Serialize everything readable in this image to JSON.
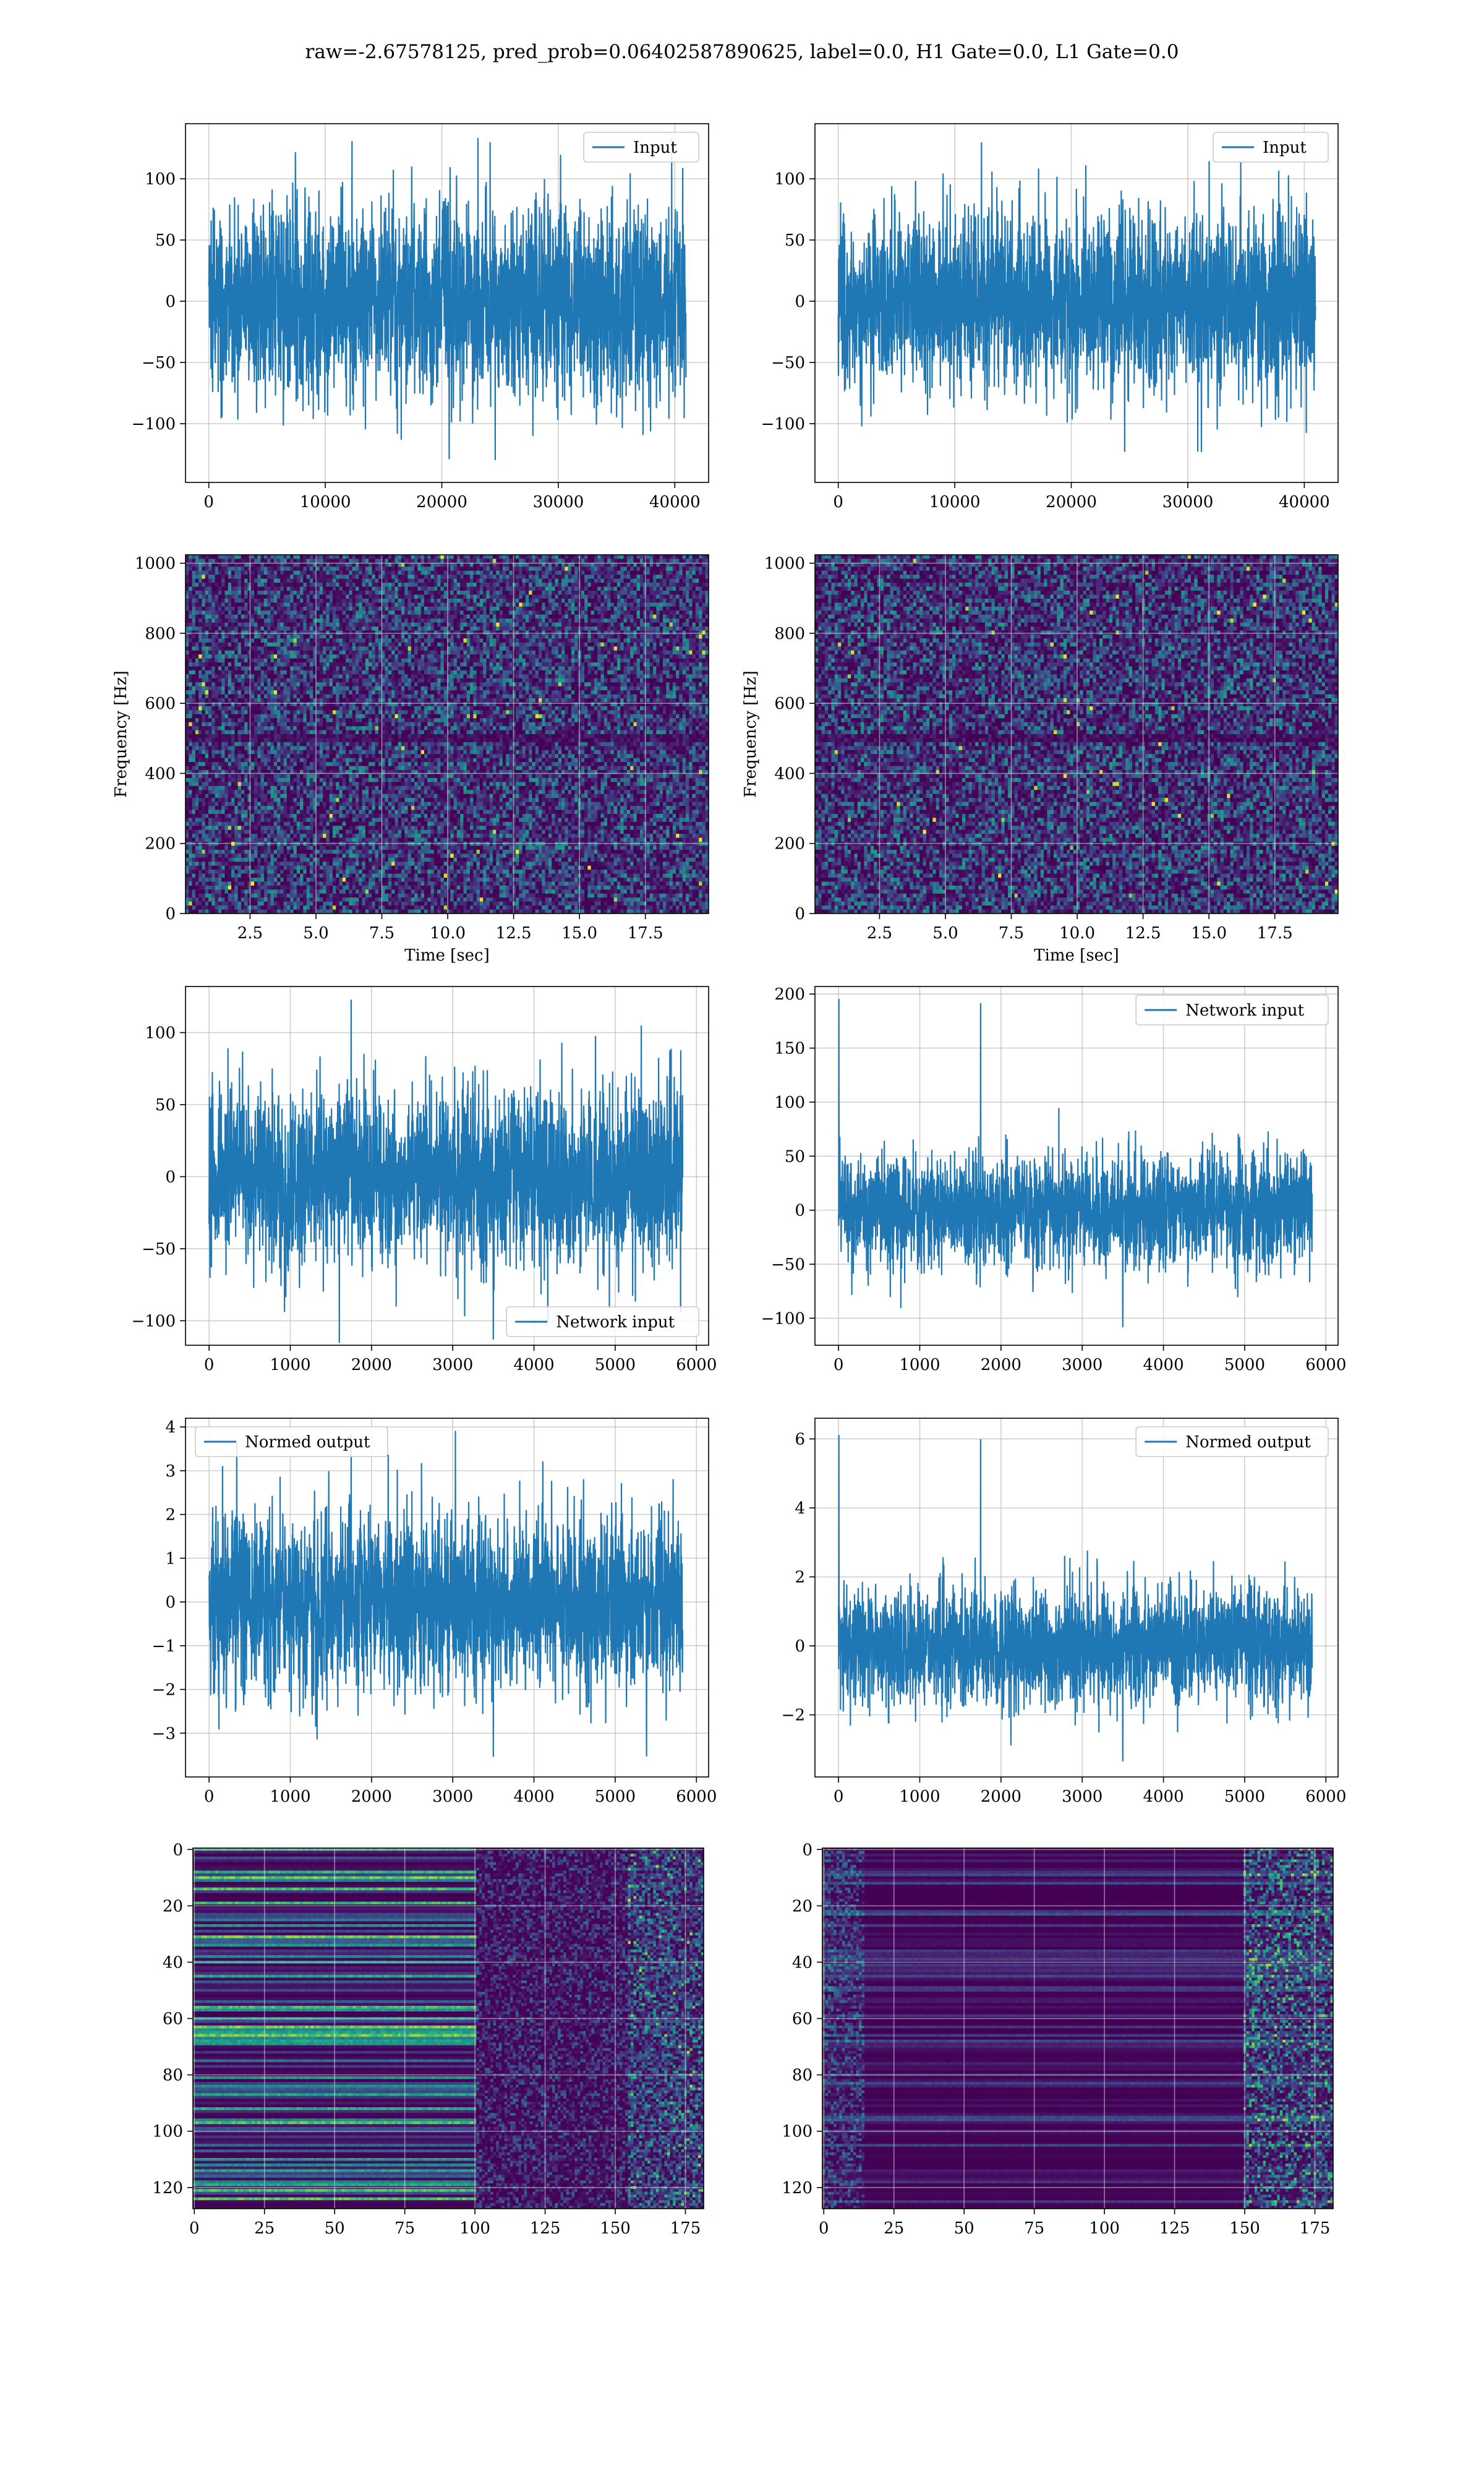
{
  "page": {
    "title": "raw=-2.67578125, pred_prob=0.06402587890625, label=0.0, H1 Gate=0.0, L1 Gate=0.0"
  },
  "colors": {
    "line": "#1f77b4",
    "grid": "#b0b0b0",
    "viridis": [
      "#440154",
      "#482878",
      "#3e4989",
      "#31688e",
      "#26828e",
      "#1f9e89",
      "#35b779",
      "#6ece58",
      "#b5de2b",
      "#fde725"
    ]
  },
  "chart_data": [
    {
      "id": "p1",
      "type": "line",
      "xlim": [
        -2000,
        42900
      ],
      "ylim": [
        -148,
        145
      ],
      "xticks": [
        0,
        10000,
        20000,
        30000,
        40000
      ],
      "yticks": [
        -100,
        -50,
        0,
        50,
        100
      ],
      "xticklabels": [
        "0",
        "10000",
        "20000",
        "30000",
        "40000"
      ],
      "yticklabels": [
        "−100",
        "−50",
        "0",
        "50",
        "100"
      ],
      "xlabel": "",
      "ylabel": "",
      "grid": true,
      "legend": "top-right",
      "series": [
        {
          "name": "Input",
          "x_range": [
            0,
            40959
          ],
          "typical_amplitude": 38,
          "extreme": [
            -132,
            133
          ]
        }
      ]
    },
    {
      "id": "p2",
      "type": "line",
      "xlim": [
        -2000,
        42900
      ],
      "ylim": [
        -148,
        145
      ],
      "xticks": [
        0,
        10000,
        20000,
        30000,
        40000
      ],
      "yticks": [
        -100,
        -50,
        0,
        50,
        100
      ],
      "xticklabels": [
        "0",
        "10000",
        "20000",
        "30000",
        "40000"
      ],
      "yticklabels": [
        "−100",
        "−50",
        "0",
        "50",
        "100"
      ],
      "xlabel": "",
      "ylabel": "",
      "grid": true,
      "legend": "top-right",
      "series": [
        {
          "name": "Input",
          "x_range": [
            0,
            40959
          ],
          "typical_amplitude": 36,
          "extreme": [
            -125,
            132
          ]
        }
      ]
    },
    {
      "id": "p3",
      "type": "heatmap",
      "xlim": [
        0.05,
        19.9
      ],
      "ylim": [
        0,
        1024
      ],
      "xticks": [
        2.5,
        5,
        7.5,
        10,
        12.5,
        15,
        17.5
      ],
      "yticks": [
        0,
        200,
        400,
        600,
        800,
        1000
      ],
      "xticklabels": [
        "2.5",
        "5.0",
        "7.5",
        "10.0",
        "12.5",
        "15.0",
        "17.5"
      ],
      "yticklabels": [
        "0",
        "200",
        "400",
        "600",
        "800",
        "1000"
      ],
      "xlabel": "Time [sec]",
      "ylabel": "Frequency [Hz]",
      "grid": true,
      "notes": "spectrogram, noise-like, dark bands near 500 Hz"
    },
    {
      "id": "p4",
      "type": "heatmap",
      "xlim": [
        0.05,
        19.9
      ],
      "ylim": [
        0,
        1024
      ],
      "xticks": [
        2.5,
        5,
        7.5,
        10,
        12.5,
        15,
        17.5
      ],
      "yticks": [
        0,
        200,
        400,
        600,
        800,
        1000
      ],
      "xticklabels": [
        "2.5",
        "5.0",
        "7.5",
        "10.0",
        "12.5",
        "15.0",
        "17.5"
      ],
      "yticklabels": [
        "0",
        "200",
        "400",
        "600",
        "800",
        "1000"
      ],
      "xlabel": "Time [sec]",
      "ylabel": "Frequency [Hz]",
      "grid": true,
      "notes": "spectrogram, noise-like, dark bands near 500 Hz"
    },
    {
      "id": "p5",
      "type": "line",
      "xlim": [
        -290,
        6150
      ],
      "ylim": [
        -117,
        132
      ],
      "xticks": [
        0,
        1000,
        2000,
        3000,
        4000,
        5000,
        6000
      ],
      "yticks": [
        -100,
        -50,
        0,
        50,
        100
      ],
      "xticklabels": [
        "0",
        "1000",
        "2000",
        "3000",
        "4000",
        "5000",
        "6000"
      ],
      "yticklabels": [
        "−100",
        "−50",
        "0",
        "50",
        "100"
      ],
      "xlabel": "",
      "ylabel": "",
      "grid": true,
      "legend": "bottom-right",
      "series": [
        {
          "name": "Network input",
          "x_range": [
            0,
            5830
          ],
          "typical_amplitude": 30,
          "extreme": [
            -115,
            125
          ]
        }
      ]
    },
    {
      "id": "p6",
      "type": "line",
      "xlim": [
        -290,
        6150
      ],
      "ylim": [
        -125,
        207
      ],
      "xticks": [
        0,
        1000,
        2000,
        3000,
        4000,
        5000,
        6000
      ],
      "yticks": [
        -100,
        -50,
        0,
        50,
        100,
        150,
        200
      ],
      "xticklabels": [
        "0",
        "1000",
        "2000",
        "3000",
        "4000",
        "5000",
        "6000"
      ],
      "yticklabels": [
        "−100",
        "−50",
        "0",
        "50",
        "100",
        "150",
        "200"
      ],
      "xlabel": "",
      "ylabel": "",
      "grid": true,
      "legend": "top-right",
      "series": [
        {
          "name": "Network input",
          "x_range": [
            0,
            5830
          ],
          "typical_amplitude": 25,
          "extreme": [
            -110,
            195
          ]
        }
      ]
    },
    {
      "id": "p7",
      "type": "line",
      "xlim": [
        -290,
        6150
      ],
      "ylim": [
        -4.0,
        4.2
      ],
      "xticks": [
        0,
        1000,
        2000,
        3000,
        4000,
        5000,
        6000
      ],
      "yticks": [
        -3,
        -2,
        -1,
        0,
        1,
        2,
        3,
        4
      ],
      "xticklabels": [
        "0",
        "1000",
        "2000",
        "3000",
        "4000",
        "5000",
        "6000"
      ],
      "yticklabels": [
        "−3",
        "−2",
        "−1",
        "0",
        "1",
        "2",
        "3",
        "4"
      ],
      "xlabel": "",
      "ylabel": "",
      "grid": true,
      "legend": "top-left",
      "series": [
        {
          "name": "Normed output",
          "x_range": [
            0,
            5830
          ],
          "typical_amplitude": 1.0,
          "extreme": [
            -3.6,
            3.9
          ]
        }
      ]
    },
    {
      "id": "p8",
      "type": "line",
      "xlim": [
        -290,
        6150
      ],
      "ylim": [
        -3.8,
        6.6
      ],
      "xticks": [
        0,
        1000,
        2000,
        3000,
        4000,
        5000,
        6000
      ],
      "yticks": [
        -2,
        0,
        2,
        4,
        6
      ],
      "xticklabels": [
        "0",
        "1000",
        "2000",
        "3000",
        "4000",
        "5000",
        "6000"
      ],
      "yticklabels": [
        "−2",
        "0",
        "2",
        "4",
        "6"
      ],
      "xlabel": "",
      "ylabel": "",
      "grid": true,
      "legend": "top-right",
      "series": [
        {
          "name": "Normed output",
          "x_range": [
            0,
            5830
          ],
          "typical_amplitude": 0.85,
          "extreme": [
            -3.4,
            6.1
          ]
        }
      ]
    },
    {
      "id": "p9",
      "type": "heatmap",
      "xlim": [
        -0.5,
        181.5
      ],
      "ylim": [
        127.5,
        -0.5
      ],
      "xticks": [
        0,
        25,
        50,
        75,
        100,
        125,
        150,
        175
      ],
      "yticks": [
        0,
        20,
        40,
        60,
        80,
        100,
        120
      ],
      "xticklabels": [
        "0",
        "25",
        "50",
        "75",
        "100",
        "125",
        "150",
        "175"
      ],
      "yticklabels": [
        "0",
        "20",
        "40",
        "60",
        "80",
        "100",
        "120"
      ],
      "xlabel": "",
      "ylabel": "",
      "grid": true,
      "notes": "feature map, bright horizontal streaks for x<100"
    },
    {
      "id": "p10",
      "type": "heatmap",
      "xlim": [
        -0.5,
        181.5
      ],
      "ylim": [
        127.5,
        -0.5
      ],
      "xticks": [
        0,
        25,
        50,
        75,
        100,
        125,
        150,
        175
      ],
      "yticks": [
        0,
        20,
        40,
        60,
        80,
        100,
        120
      ],
      "xticklabels": [
        "0",
        "25",
        "50",
        "75",
        "100",
        "125",
        "150",
        "175"
      ],
      "yticklabels": [
        "0",
        "20",
        "40",
        "60",
        "80",
        "100",
        "120"
      ],
      "xlabel": "",
      "ylabel": "",
      "grid": true,
      "notes": "feature map, dim with brighter activity for x>150"
    }
  ]
}
